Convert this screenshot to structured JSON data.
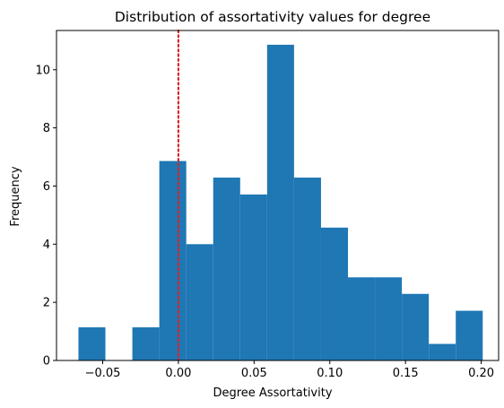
{
  "chart_data": {
    "type": "bar",
    "title": "Distribution of assortativity values for degree",
    "xlabel": "Degree Assortativity",
    "ylabel": "Frequency",
    "xlim": [
      -0.0805,
      0.2115
    ],
    "ylim": [
      0,
      11.35
    ],
    "grid": false,
    "xticks": [
      -0.05,
      0.0,
      0.05,
      0.1,
      0.15,
      0.2
    ],
    "xtick_labels": [
      "−0.05",
      "0.00",
      "0.05",
      "0.10",
      "0.15",
      "0.20"
    ],
    "yticks": [
      0,
      2,
      4,
      6,
      8,
      10
    ],
    "ytick_labels": [
      "0",
      "2",
      "4",
      "6",
      "8",
      "10"
    ],
    "bar_color": "#1f77b4",
    "reference_line": {
      "x": 0.0,
      "color": "#d62728",
      "style": "dotted"
    },
    "bins": [
      {
        "x0": -0.066,
        "x1": -0.0482,
        "value": 1.14
      },
      {
        "x0": -0.0482,
        "x1": -0.0304,
        "value": 0.0
      },
      {
        "x0": -0.0304,
        "x1": -0.0126,
        "value": 1.14
      },
      {
        "x0": -0.0126,
        "x1": 0.0052,
        "value": 6.86
      },
      {
        "x0": 0.0052,
        "x1": 0.023,
        "value": 4.0
      },
      {
        "x0": 0.023,
        "x1": 0.0408,
        "value": 6.29
      },
      {
        "x0": 0.0408,
        "x1": 0.0586,
        "value": 5.71
      },
      {
        "x0": 0.0586,
        "x1": 0.0764,
        "value": 10.86
      },
      {
        "x0": 0.0764,
        "x1": 0.0942,
        "value": 6.29
      },
      {
        "x0": 0.0942,
        "x1": 0.112,
        "value": 4.57
      },
      {
        "x0": 0.112,
        "x1": 0.1298,
        "value": 2.86
      },
      {
        "x0": 0.1298,
        "x1": 0.1476,
        "value": 2.86
      },
      {
        "x0": 0.1476,
        "x1": 0.1654,
        "value": 2.29
      },
      {
        "x0": 0.1654,
        "x1": 0.1832,
        "value": 0.57
      },
      {
        "x0": 0.1832,
        "x1": 0.201,
        "value": 1.71
      }
    ]
  }
}
